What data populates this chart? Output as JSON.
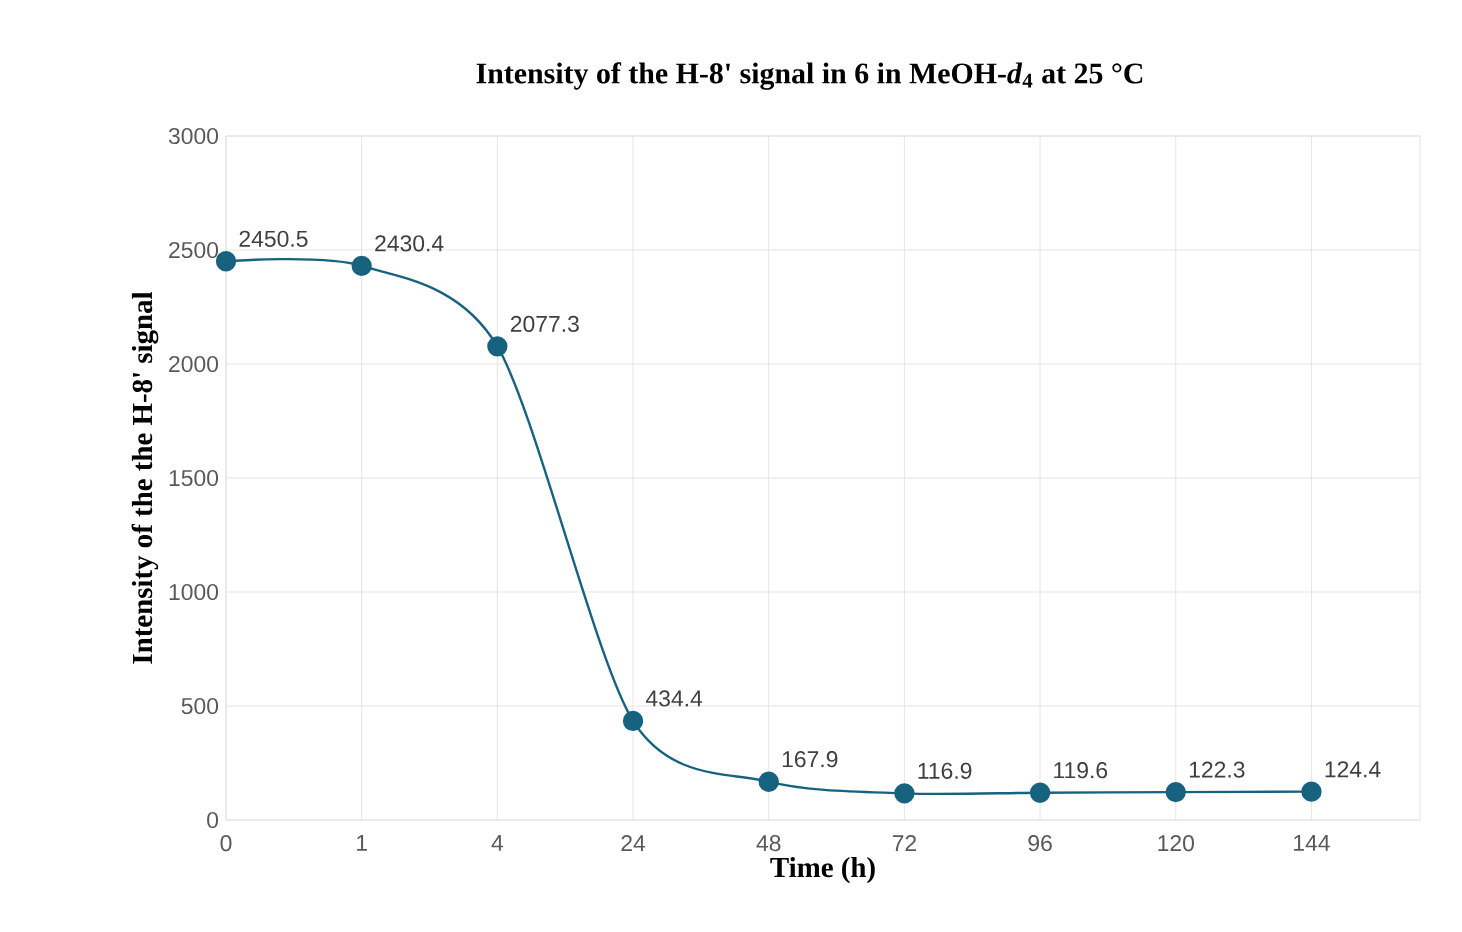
{
  "chart_data": {
    "type": "line",
    "title": "Intensity of the H-8' signal in 6 in MeOH-*d*$_{4}$ at 25 °C",
    "xlabel": "Time (h)",
    "ylabel": "Intensity of the the H-8' signal",
    "categories": [
      "0",
      "1",
      "4",
      "24",
      "48",
      "72",
      "96",
      "120",
      "144"
    ],
    "values": [
      2450.5,
      2430.4,
      2077.3,
      434.4,
      167.9,
      116.9,
      119.6,
      122.3,
      124.4
    ],
    "color": "#17627f",
    "marker": "circle",
    "line_style": "solid",
    "ylim": [
      0,
      3000
    ],
    "yticks": [
      0,
      500,
      1000,
      1500,
      2000,
      2500,
      3000
    ],
    "grid": true,
    "data_labels": true
  }
}
